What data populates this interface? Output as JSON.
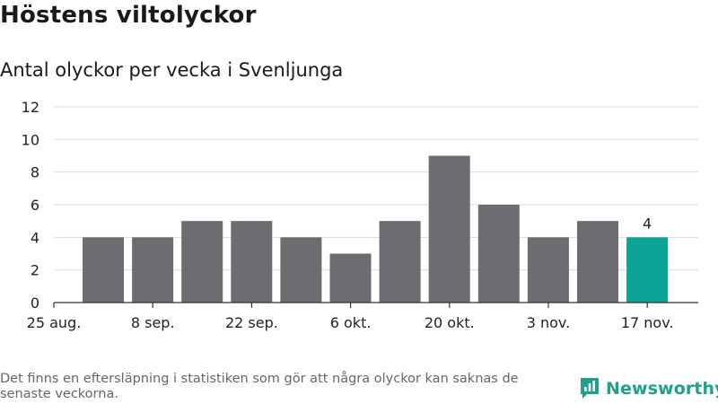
{
  "title": "Höstens viltolyckor",
  "subtitle": "Antal olyckor per vecka i Svenljunga",
  "footnote": "Det finns en eftersläpning i statistiken som gör att några olyckor kan saknas de senaste veckorna.",
  "brand": {
    "name": "Newsworthy",
    "color": "#1ea08c",
    "icon": "bar-chart-speech-bubble-icon"
  },
  "colors": {
    "bar": "#6d6c71",
    "highlight": "#0aa396",
    "grid": "#d9d9d9",
    "axis": "#333333",
    "text": "#222222"
  },
  "chart_data": {
    "type": "bar",
    "title": "Höstens viltolyckor",
    "subtitle": "Antal olyckor per vecka i Svenljunga",
    "xlabel": "",
    "ylabel": "",
    "ylim": [
      0,
      12
    ],
    "yticks": [
      0,
      2,
      4,
      6,
      8,
      10,
      12
    ],
    "grid": true,
    "legend": "none",
    "x_tick_labels": [
      "25 aug.",
      "8 sep.",
      "22 sep.",
      "6 okt.",
      "20 okt.",
      "3 nov.",
      "17 nov."
    ],
    "values": [
      4,
      4,
      5,
      5,
      4,
      3,
      5,
      9,
      6,
      4,
      5,
      4
    ],
    "highlight_index": 11,
    "data_labels": [
      {
        "index": 11,
        "text": "4"
      }
    ]
  }
}
